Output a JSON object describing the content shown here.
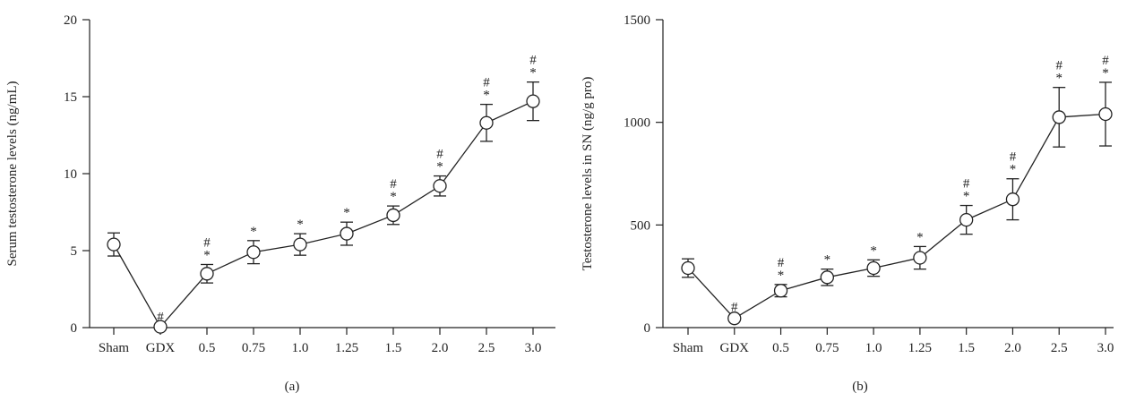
{
  "chart_data": [
    {
      "type": "line",
      "panel_label": "(a)",
      "ylabel": "Serum testosterone levels (ng/mL)",
      "xlabel": "",
      "categories": [
        "Sham",
        "GDX",
        "0.5",
        "0.75",
        "1.0",
        "1.25",
        "1.5",
        "2.0",
        "2.5",
        "3.0"
      ],
      "ylim": [
        0,
        20
      ],
      "yticks": [
        0,
        5,
        10,
        15,
        20
      ],
      "grid": false,
      "series": [
        {
          "values": [
            5.4,
            0.05,
            3.5,
            4.9,
            5.4,
            6.1,
            7.3,
            9.2,
            13.3,
            14.7
          ],
          "errors": [
            0.75,
            0.05,
            0.6,
            0.75,
            0.7,
            0.75,
            0.6,
            0.65,
            1.2,
            1.25
          ],
          "annotations": [
            "",
            "#",
            "#\n*",
            "*",
            "*",
            "*",
            "#\n*",
            "#\n*",
            "#\n*",
            "#\n*"
          ]
        }
      ]
    },
    {
      "type": "line",
      "panel_label": "(b)",
      "ylabel": "Testosterone levels in SN (ng/g pro)",
      "xlabel": "",
      "categories": [
        "Sham",
        "GDX",
        "0.5",
        "0.75",
        "1.0",
        "1.25",
        "1.5",
        "2.0",
        "2.5",
        "3.0"
      ],
      "ylim": [
        0,
        1500
      ],
      "yticks": [
        0,
        500,
        1000,
        1500
      ],
      "grid": false,
      "series": [
        {
          "values": [
            290,
            45,
            180,
            245,
            290,
            340,
            525,
            625,
            1025,
            1040
          ],
          "errors": [
            45,
            10,
            30,
            40,
            40,
            55,
            70,
            100,
            145,
            155
          ],
          "annotations": [
            "",
            "#",
            "#\n*",
            "*",
            "*",
            "*",
            "#\n*",
            "#\n*",
            "#\n*",
            "#\n*"
          ]
        }
      ]
    }
  ]
}
